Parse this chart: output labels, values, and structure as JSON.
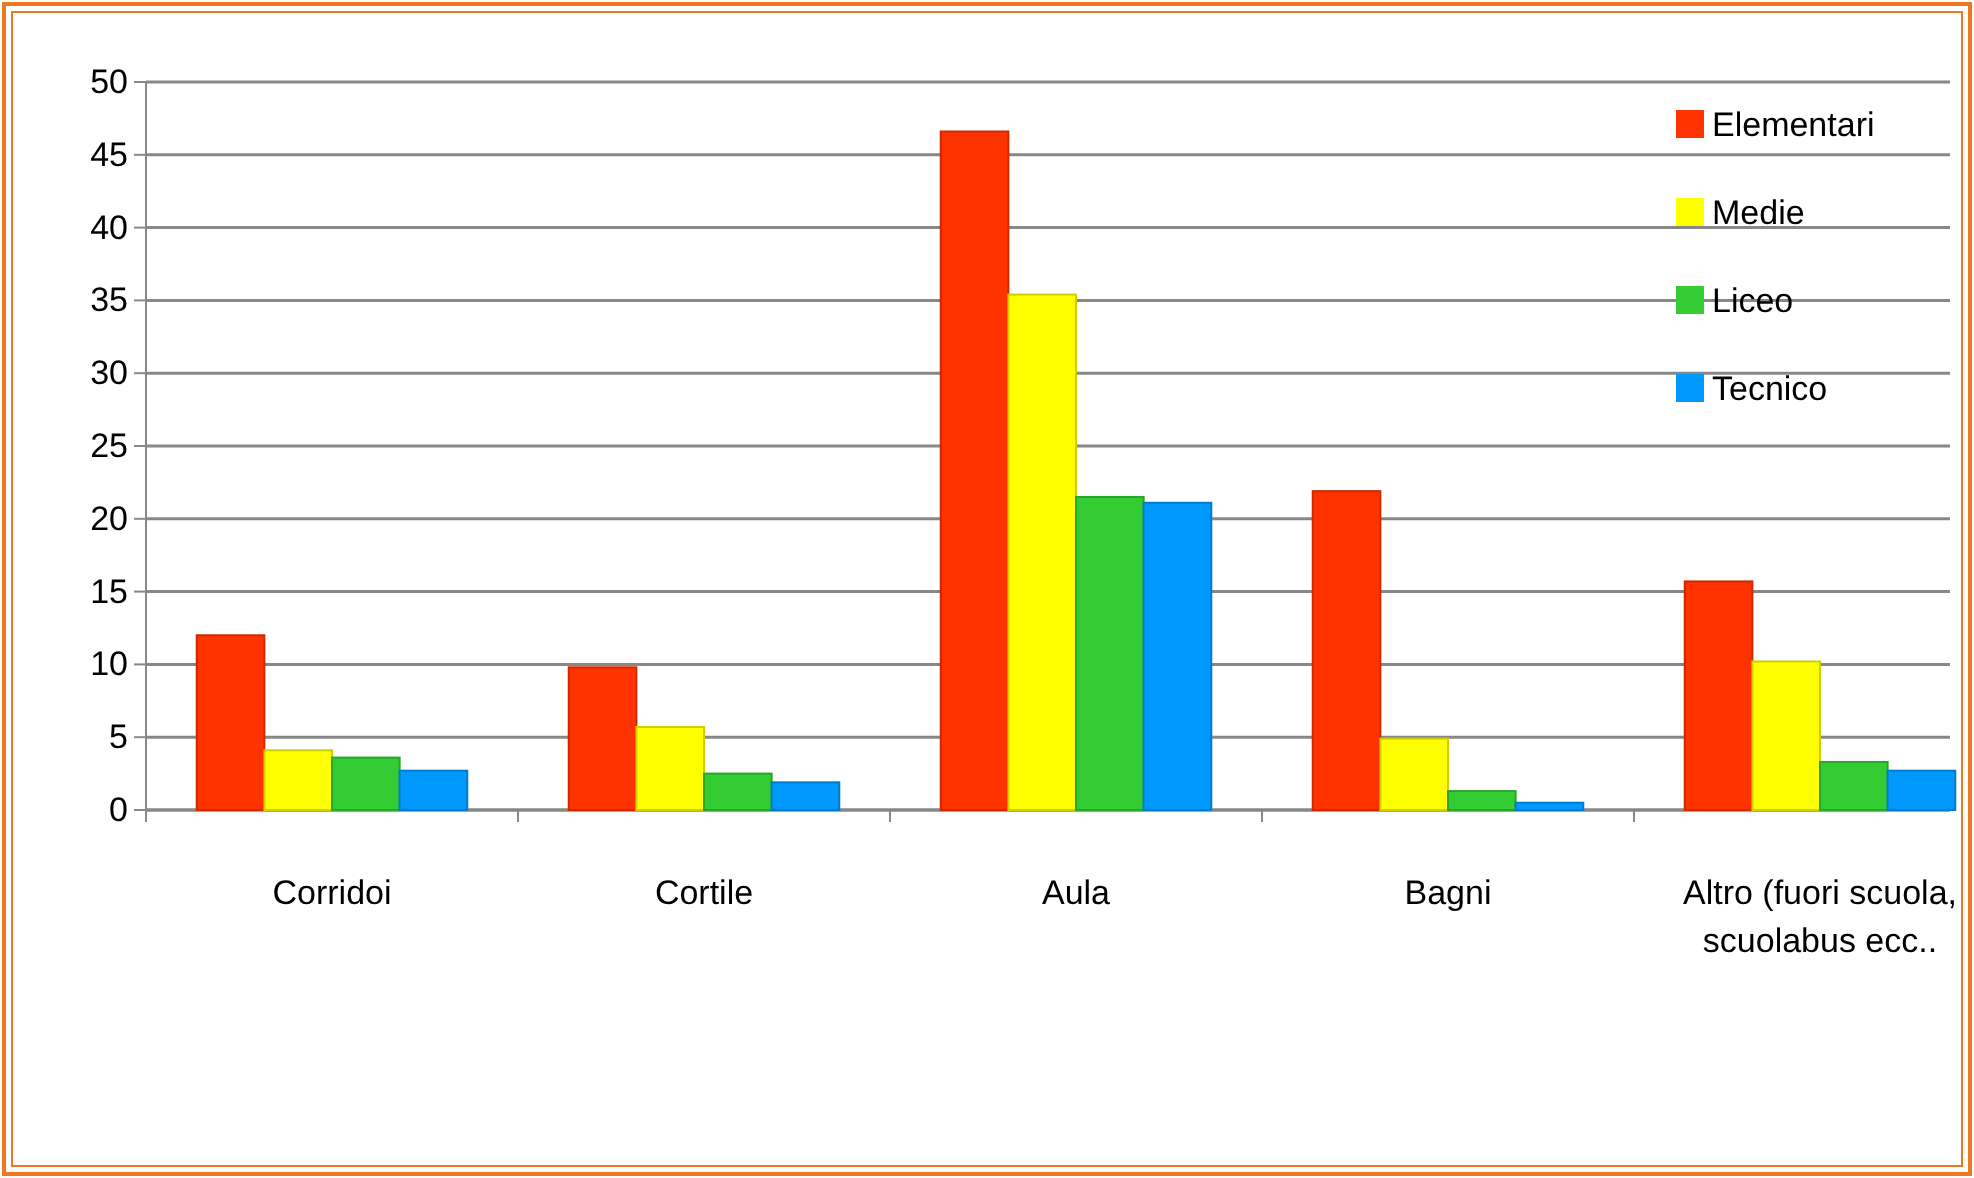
{
  "chart_data": {
    "type": "bar",
    "categories": [
      "Corridoi",
      "Cortile",
      "Aula",
      "Bagni",
      "Altro (fuori scuola, scuolabus ecc.."
    ],
    "series": [
      {
        "name": "Elementari",
        "color": "#ff3300",
        "values": [
          12.0,
          9.8,
          46.6,
          21.9,
          15.7
        ]
      },
      {
        "name": "Medie",
        "color": "#ffff00",
        "values": [
          4.1,
          5.7,
          35.4,
          4.9,
          10.2
        ]
      },
      {
        "name": "Liceo",
        "color": "#33cc33",
        "values": [
          3.6,
          2.5,
          21.5,
          1.3,
          3.3
        ]
      },
      {
        "name": "Tecnico",
        "color": "#0099ff",
        "values": [
          2.7,
          1.9,
          21.1,
          0.5,
          2.7
        ]
      }
    ],
    "ylim": [
      0,
      50
    ],
    "yticks": [
      0,
      5,
      10,
      15,
      20,
      25,
      30,
      35,
      40,
      45,
      50
    ],
    "grid": "y",
    "legend": "top right"
  }
}
